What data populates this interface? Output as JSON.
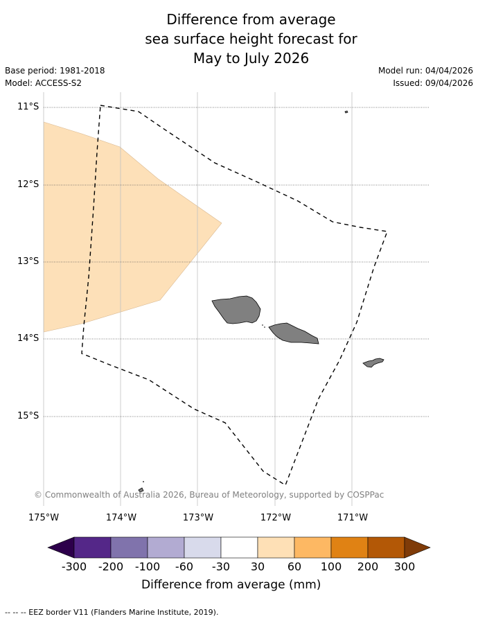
{
  "title": {
    "lines": [
      "Difference from average",
      "sea surface height forecast for",
      "May to July 2026"
    ]
  },
  "meta": {
    "base_period": "Base period: 1981-2018",
    "model": "Model: ACCESS-S2",
    "model_run": "Model run: 04/04/2026",
    "issued": "Issued: 09/04/2026"
  },
  "map": {
    "lat_labels": [
      "11°S",
      "12°S",
      "13°S",
      "14°S",
      "15°S"
    ],
    "lon_labels": [
      "175°W",
      "174°W",
      "173°W",
      "172°W",
      "171°W"
    ],
    "anomaly_band": "30 to 60",
    "anomaly_fill": "#fde0b8",
    "land_fill": "#808080",
    "copyright": "© Commonwealth of Australia 2026, Bureau of Meteorology, supported by COSPPac"
  },
  "colorbar": {
    "colors": [
      "#2d004b",
      "#542788",
      "#8073ac",
      "#b2abd2",
      "#d8daeb",
      "#ffffff",
      "#fee0b6",
      "#fdb863",
      "#e08214",
      "#b35806",
      "#7f3b08"
    ],
    "labels": [
      "-300",
      "-200",
      "-100",
      "-60",
      "-30",
      "30",
      "60",
      "100",
      "200",
      "300"
    ],
    "title": "Difference from average (mm)"
  },
  "footer": {
    "legend": "--  --  -- EEZ border V11 (Flanders Marine Institute, 2019)."
  }
}
